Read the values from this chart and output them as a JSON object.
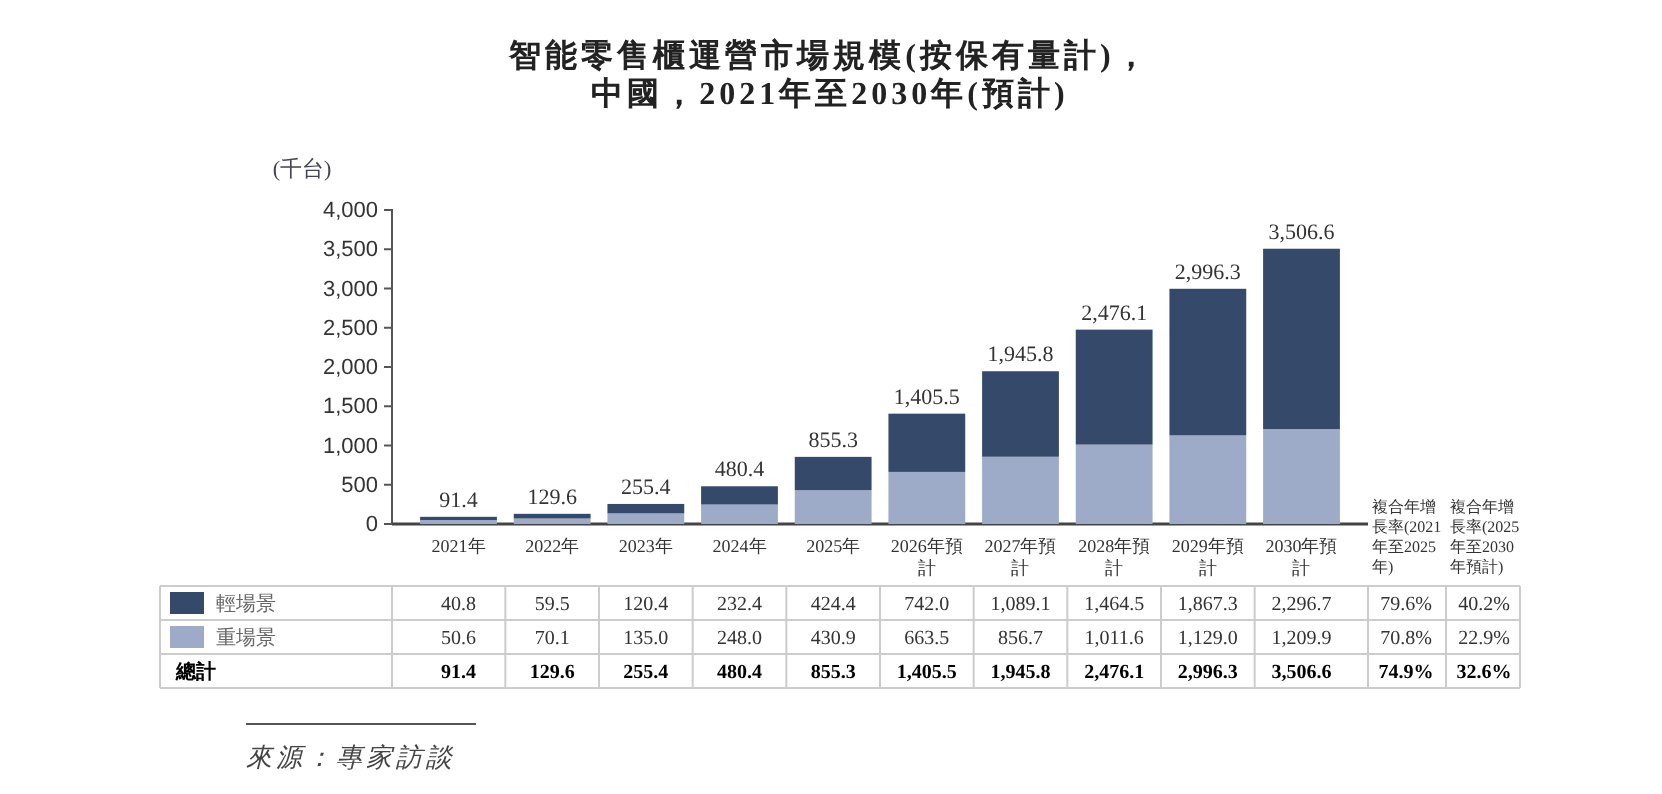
{
  "chart_data": {
    "type": "bar",
    "title": "智能零售櫃運營市場規模(按保有量計)，",
    "subtitle": "中國，2021年至2030年(預計)",
    "ylabel": "(千台)",
    "categories": [
      "2021年",
      "2022年",
      "2023年",
      "2024年",
      "2025年",
      "2026年預計",
      "2027年預計",
      "2028年預計",
      "2029年預計",
      "2030年預計"
    ],
    "stacked": true,
    "series": [
      {
        "name": "重場景",
        "color": "#9daac8",
        "values": [
          50.6,
          70.1,
          135.0,
          248.0,
          430.9,
          663.5,
          856.7,
          1011.6,
          1129.0,
          1209.9
        ],
        "value_labels": [
          "50.6",
          "70.1",
          "135.0",
          "248.0",
          "430.9",
          "663.5",
          "856.7",
          "1,011.6",
          "1,129.0",
          "1,209.9"
        ]
      },
      {
        "name": "輕場景",
        "color": "#354a6b",
        "values": [
          40.8,
          59.5,
          120.4,
          232.4,
          424.4,
          742.0,
          1089.1,
          1464.5,
          1867.3,
          2296.7
        ],
        "value_labels": [
          "40.8",
          "59.5",
          "120.4",
          "232.4",
          "424.4",
          "742.0",
          "1,089.1",
          "1,464.5",
          "1,867.3",
          "2,296.7"
        ]
      }
    ],
    "totals": [
      "91.4",
      "129.6",
      "255.4",
      "480.4",
      "855.3",
      "1,405.5",
      "1,945.8",
      "2,476.1",
      "2,996.3",
      "3,506.6"
    ],
    "ylim": [
      0,
      4000
    ],
    "yticks": [
      0,
      500,
      {
        "value": 1000,
        "label": "1,000"
      },
      {
        "value": 1500,
        "label": "1,500"
      },
      {
        "value": 2000,
        "label": "2,000"
      },
      {
        "value": 2500,
        "label": "2,500"
      },
      {
        "value": 3000,
        "label": "3,000"
      },
      {
        "value": 3500,
        "label": "3,500"
      },
      {
        "value": 4000,
        "label": "4,000"
      }
    ],
    "legend": "bottom",
    "annotations": [
      "來源：專家訪談",
      "總計",
      "複合年增長率(2021年至2025年)",
      "複合年增長率(2025年至2030年預計)",
      "79.6%",
      "40.2%",
      "70.8%",
      "22.9%",
      "74.9%",
      "32.6%"
    ]
  }
}
